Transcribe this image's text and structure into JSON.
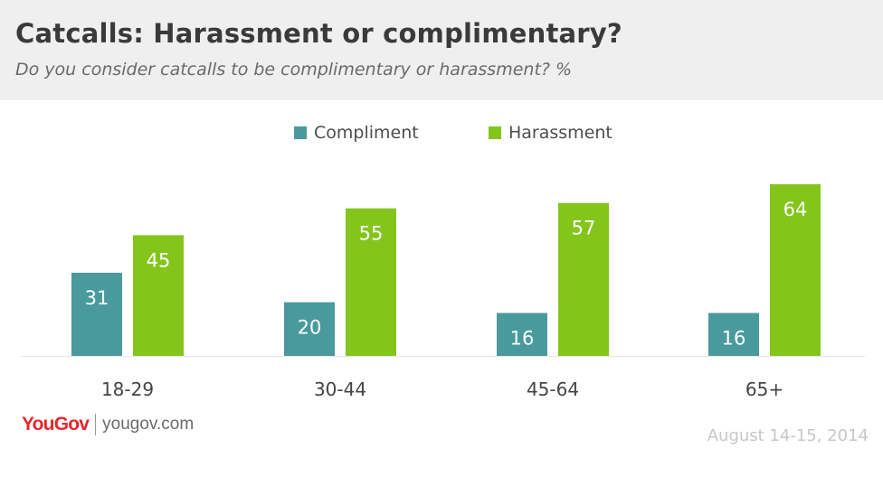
{
  "header": {
    "title": "Catcalls: Harassment or complimentary?",
    "subtitle": "Do you consider catcalls to be complimentary or harassment? %"
  },
  "colors": {
    "compliment": "#4a9a9d",
    "harassment": "#84c51c",
    "header_bg": "#efefef",
    "brand": "#e8262b"
  },
  "chart_data": {
    "type": "bar",
    "categories": [
      "18-29",
      "30-44",
      "45-64",
      "65+"
    ],
    "series": [
      {
        "name": "Compliment",
        "values": [
          31,
          20,
          16,
          16
        ]
      },
      {
        "name": "Harassment",
        "values": [
          45,
          55,
          57,
          64
        ]
      }
    ],
    "title": "Catcalls: Harassment or complimentary?",
    "subtitle": "Do you consider catcalls to be complimentary or harassment? %",
    "xlabel": "",
    "ylabel": "",
    "ylim": [
      0,
      70
    ],
    "grid": false,
    "legend_position": "top-center",
    "data_labels": true
  },
  "footer": {
    "logo": "YouGov",
    "site": "yougov.com",
    "date": "August 14-15, 2014"
  }
}
